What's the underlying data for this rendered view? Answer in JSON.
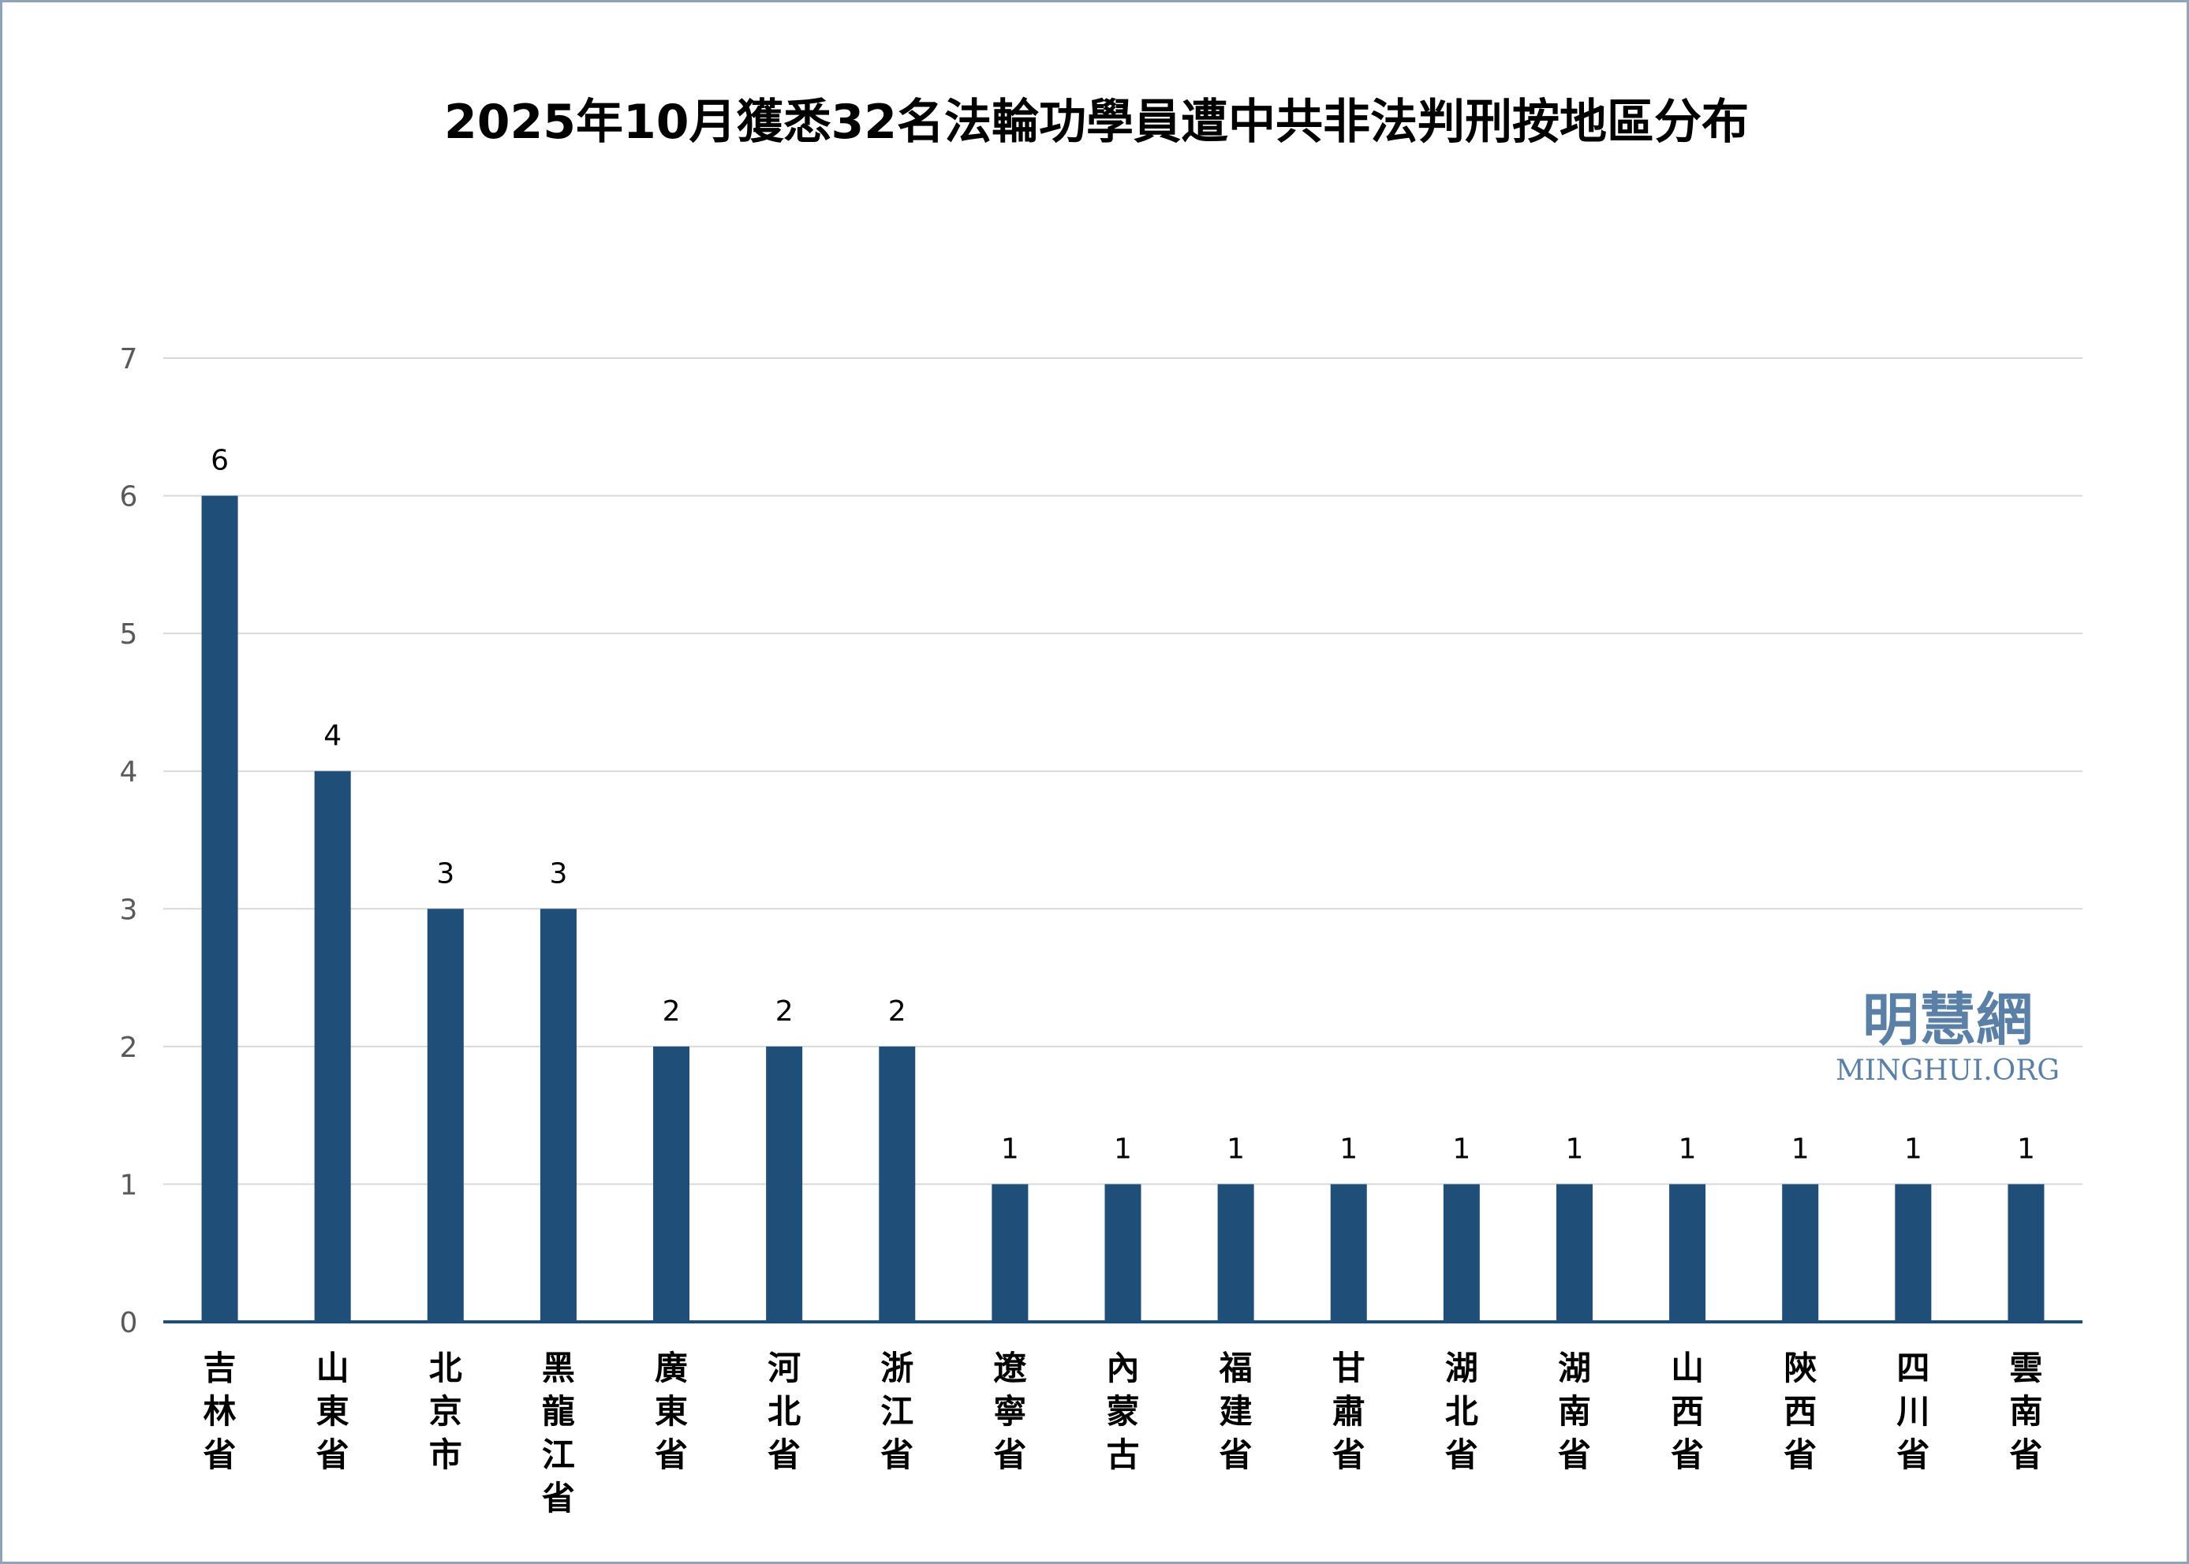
{
  "chart_data": {
    "type": "bar",
    "title": "2025年10月獲悉32名法輪功學員遭中共非法判刑按地區分布",
    "xlabel": "",
    "ylabel": "",
    "categories": [
      "吉林省",
      "山東省",
      "北京市",
      "黑龍江省",
      "廣東省",
      "河北省",
      "浙江省",
      "遼寧省",
      "內蒙古",
      "福建省",
      "甘肅省",
      "湖北省",
      "湖南省",
      "山西省",
      "陝西省",
      "四川省",
      "雲南省"
    ],
    "values": [
      6,
      4,
      3,
      3,
      2,
      2,
      2,
      1,
      1,
      1,
      1,
      1,
      1,
      1,
      1,
      1,
      1
    ],
    "ylim": [
      0,
      7
    ],
    "yticks": [
      0,
      1,
      2,
      3,
      4,
      5,
      6,
      7
    ],
    "grid": true,
    "data_labels": true,
    "bar_color": "#1f4e79"
  },
  "watermark": {
    "name": "明慧網",
    "url_text": "MINGHUI.ORG",
    "color": "#5b80a8"
  }
}
